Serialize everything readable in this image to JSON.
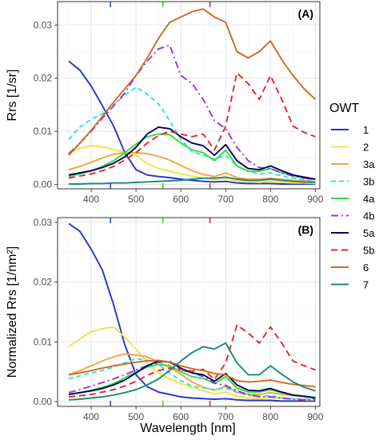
{
  "chart_data": {
    "type": "line",
    "xlabel": "Wavelength [nm]",
    "xlim": [
      325,
      910
    ],
    "x_ticks": [
      400,
      500,
      600,
      700,
      800,
      900
    ],
    "x": [
      350,
      375,
      400,
      425,
      450,
      475,
      500,
      525,
      550,
      575,
      600,
      625,
      650,
      675,
      700,
      725,
      750,
      775,
      800,
      825,
      850,
      875,
      900
    ],
    "band_marks": [
      {
        "x": 443,
        "color": "#1f3fbf"
      },
      {
        "x": 560,
        "color": "#3ccf3c"
      },
      {
        "x": 665,
        "color": "#d62728"
      }
    ],
    "legend": {
      "title": "OWT",
      "entries": [
        "1",
        "2",
        "3a",
        "3b",
        "4a",
        "4b",
        "5a",
        "5b",
        "6",
        "7"
      ]
    },
    "panels": [
      {
        "tag": "(A)",
        "ylabel": "Rrs [1/sr]",
        "ylim": [
          -0.0008,
          0.0344
        ],
        "y_ticks": [
          0.0,
          0.01,
          0.02,
          0.03
        ],
        "y_tick_labels": [
          "0.00",
          "0.01",
          "0.02",
          "0.03"
        ],
        "series": [
          {
            "name": "1",
            "color": "#2233cc",
            "dash": "",
            "values": [
              0.0232,
              0.0215,
              0.0185,
              0.0148,
              0.011,
              0.006,
              0.0028,
              0.0018,
              0.0015,
              0.0013,
              0.001,
              0.0008,
              0.0006,
              0.0005,
              0.0006,
              0.0003,
              0.0002,
              0.0002,
              0.0002,
              0.0001,
              0.0001,
              0.0001,
              0.0001
            ]
          },
          {
            "name": "2",
            "color": "#f0e442",
            "dash": "",
            "values": [
              0.006,
              0.0068,
              0.0073,
              0.0071,
              0.0066,
              0.006,
              0.0055,
              0.004,
              0.003,
              0.0025,
              0.002,
              0.0016,
              0.0012,
              0.0009,
              0.0012,
              0.0007,
              0.0005,
              0.0004,
              0.0006,
              0.0004,
              0.0003,
              0.0003,
              0.0002
            ]
          },
          {
            "name": "3a",
            "color": "#f4a43a",
            "dash": "",
            "values": [
              0.0028,
              0.0034,
              0.0042,
              0.005,
              0.0057,
              0.006,
              0.006,
              0.0058,
              0.0053,
              0.0046,
              0.0036,
              0.0026,
              0.0019,
              0.0015,
              0.0022,
              0.0013,
              0.001,
              0.001,
              0.0012,
              0.001,
              0.0008,
              0.0007,
              0.0006
            ]
          },
          {
            "name": "3b",
            "color": "#33e0e0",
            "dash": "6,4",
            "values": [
              0.0085,
              0.0108,
              0.0123,
              0.0133,
              0.015,
              0.0168,
              0.0183,
              0.017,
              0.0152,
              0.012,
              0.0085,
              0.0062,
              0.0055,
              0.0048,
              0.0055,
              0.0035,
              0.0025,
              0.002,
              0.0022,
              0.0016,
              0.0012,
              0.001,
              0.0008
            ]
          },
          {
            "name": "4a",
            "color": "#33dd33",
            "dash": "",
            "values": [
              0.0015,
              0.002,
              0.0026,
              0.0034,
              0.0045,
              0.006,
              0.0076,
              0.009,
              0.0095,
              0.0094,
              0.0078,
              0.0065,
              0.006,
              0.0045,
              0.0065,
              0.0035,
              0.0025,
              0.0025,
              0.003,
              0.0022,
              0.0016,
              0.0013,
              0.001
            ]
          },
          {
            "name": "4b",
            "color": "#9933dd",
            "dash": "9,4,2,4",
            "values": [
              0.0058,
              0.0078,
              0.01,
              0.0125,
              0.0148,
              0.0172,
              0.0205,
              0.0232,
              0.0255,
              0.0262,
              0.0205,
              0.019,
              0.016,
              0.012,
              0.0105,
              0.007,
              0.0045,
              0.0032,
              0.003,
              0.0022,
              0.0016,
              0.0012,
              0.001
            ]
          },
          {
            "name": "5a",
            "color": "#000066",
            "dash": "",
            "values": [
              0.0018,
              0.0022,
              0.0026,
              0.0032,
              0.004,
              0.0052,
              0.007,
              0.0095,
              0.0108,
              0.0105,
              0.009,
              0.0078,
              0.0073,
              0.0055,
              0.0075,
              0.0045,
              0.003,
              0.0028,
              0.0035,
              0.0026,
              0.0018,
              0.0014,
              0.001
            ]
          },
          {
            "name": "5b",
            "color": "#ee2222",
            "dash": "8,5",
            "values": [
              0.0012,
              0.0016,
              0.002,
              0.0026,
              0.0034,
              0.0046,
              0.006,
              0.0078,
              0.0092,
              0.01,
              0.0095,
              0.009,
              0.0095,
              0.0065,
              0.011,
              0.021,
              0.019,
              0.016,
              0.0205,
              0.016,
              0.011,
              0.0098,
              0.009
            ]
          },
          {
            "name": "6",
            "color": "#d2691e",
            "dash": "",
            "values": [
              0.0055,
              0.0078,
              0.0102,
              0.0128,
              0.0155,
              0.018,
              0.0205,
              0.0238,
              0.0275,
              0.0305,
              0.0315,
              0.0325,
              0.033,
              0.0315,
              0.0305,
              0.025,
              0.0238,
              0.025,
              0.027,
              0.0235,
              0.0205,
              0.018,
              0.016
            ]
          },
          {
            "name": "7",
            "color": "#1a8a7a",
            "dash": "",
            "values": [
              0.0001,
              0.0001,
              0.0002,
              0.0002,
              0.0003,
              0.0003,
              0.0004,
              0.0005,
              0.0006,
              0.0007,
              0.0008,
              0.001,
              0.0012,
              0.0012,
              0.0014,
              0.001,
              0.0008,
              0.0008,
              0.001,
              0.0008,
              0.0006,
              0.0005,
              0.0004
            ]
          }
        ]
      },
      {
        "tag": "(B)",
        "ylabel": "Normalized Rrs [1/nm²]",
        "ylim": [
          -0.0008,
          0.0308
        ],
        "y_ticks": [
          0.0,
          0.01,
          0.02,
          0.03
        ],
        "y_tick_labels": [
          "0.00",
          "0.01",
          "0.02",
          "0.03"
        ],
        "series": [
          {
            "name": "1",
            "color": "#2233cc",
            "dash": "",
            "values": [
              0.0298,
              0.0285,
              0.0255,
              0.022,
              0.0162,
              0.0095,
              0.0045,
              0.0025,
              0.0016,
              0.0012,
              0.0008,
              0.0006,
              0.0005,
              0.0004,
              0.0005,
              0.0003,
              0.0002,
              0.0002,
              0.0002,
              0.0001,
              0.0001,
              0.0001,
              0.0001
            ]
          },
          {
            "name": "2",
            "color": "#f0e442",
            "dash": "",
            "values": [
              0.0092,
              0.0105,
              0.0117,
              0.0122,
              0.0125,
              0.0108,
              0.0088,
              0.0065,
              0.0048,
              0.0038,
              0.003,
              0.0024,
              0.0018,
              0.0013,
              0.0016,
              0.0009,
              0.0006,
              0.0005,
              0.0007,
              0.0005,
              0.0004,
              0.0003,
              0.0003
            ]
          },
          {
            "name": "3a",
            "color": "#f4a43a",
            "dash": "",
            "values": [
              0.0045,
              0.0052,
              0.006,
              0.0068,
              0.0075,
              0.008,
              0.0078,
              0.0075,
              0.0066,
              0.0058,
              0.0046,
              0.0033,
              0.0024,
              0.0019,
              0.0026,
              0.0016,
              0.0012,
              0.0012,
              0.0015,
              0.0012,
              0.001,
              0.0008,
              0.0007
            ]
          },
          {
            "name": "3b",
            "color": "#33e0e0",
            "dash": "6,4",
            "values": [
              0.0038,
              0.0043,
              0.0048,
              0.0052,
              0.0058,
              0.0065,
              0.0072,
              0.0069,
              0.0062,
              0.0048,
              0.0035,
              0.0026,
              0.0023,
              0.002,
              0.0023,
              0.0015,
              0.0011,
              0.0009,
              0.001,
              0.0007,
              0.0005,
              0.0004,
              0.0004
            ]
          },
          {
            "name": "4a",
            "color": "#33dd33",
            "dash": "",
            "values": [
              0.0012,
              0.0015,
              0.0019,
              0.0024,
              0.003,
              0.004,
              0.005,
              0.0058,
              0.0062,
              0.006,
              0.005,
              0.0042,
              0.0039,
              0.003,
              0.0042,
              0.0023,
              0.0016,
              0.0016,
              0.002,
              0.0015,
              0.0011,
              0.0009,
              0.0007
            ]
          },
          {
            "name": "4b",
            "color": "#9933dd",
            "dash": "9,4,2,4",
            "values": [
              0.0015,
              0.002,
              0.0026,
              0.0032,
              0.0038,
              0.0045,
              0.0053,
              0.006,
              0.0066,
              0.0068,
              0.0053,
              0.0049,
              0.0042,
              0.0031,
              0.0027,
              0.0018,
              0.0012,
              0.0008,
              0.0008,
              0.0006,
              0.0004,
              0.0003,
              0.0003
            ]
          },
          {
            "name": "5a",
            "color": "#000066",
            "dash": "",
            "values": [
              0.0012,
              0.0015,
              0.0018,
              0.0022,
              0.0028,
              0.0036,
              0.0048,
              0.006,
              0.0068,
              0.0066,
              0.0056,
              0.0048,
              0.0045,
              0.0034,
              0.0047,
              0.0028,
              0.0019,
              0.0018,
              0.0022,
              0.0016,
              0.0011,
              0.0009,
              0.0006
            ]
          },
          {
            "name": "5b",
            "color": "#ee2222",
            "dash": "8,5",
            "values": [
              0.0008,
              0.001,
              0.0012,
              0.0016,
              0.002,
              0.0026,
              0.0034,
              0.0044,
              0.0052,
              0.0056,
              0.0054,
              0.0051,
              0.0054,
              0.0037,
              0.0065,
              0.0128,
              0.0115,
              0.0098,
              0.0125,
              0.0098,
              0.0068,
              0.006,
              0.0053
            ]
          },
          {
            "name": "6",
            "color": "#d2691e",
            "dash": "",
            "values": [
              0.0045,
              0.0048,
              0.0052,
              0.0056,
              0.006,
              0.0063,
              0.0066,
              0.0068,
              0.0069,
              0.0066,
              0.006,
              0.0055,
              0.0052,
              0.0047,
              0.0045,
              0.0035,
              0.0033,
              0.0034,
              0.0036,
              0.0032,
              0.0029,
              0.0027,
              0.0025
            ]
          },
          {
            "name": "7",
            "color": "#1a8a7a",
            "dash": "",
            "values": [
              0.0003,
              0.0004,
              0.0006,
              0.0008,
              0.0011,
              0.0015,
              0.002,
              0.0028,
              0.0038,
              0.0052,
              0.0068,
              0.0082,
              0.0092,
              0.0088,
              0.0098,
              0.0065,
              0.0045,
              0.0045,
              0.006,
              0.0046,
              0.0033,
              0.0024,
              0.0018
            ]
          }
        ]
      }
    ]
  }
}
